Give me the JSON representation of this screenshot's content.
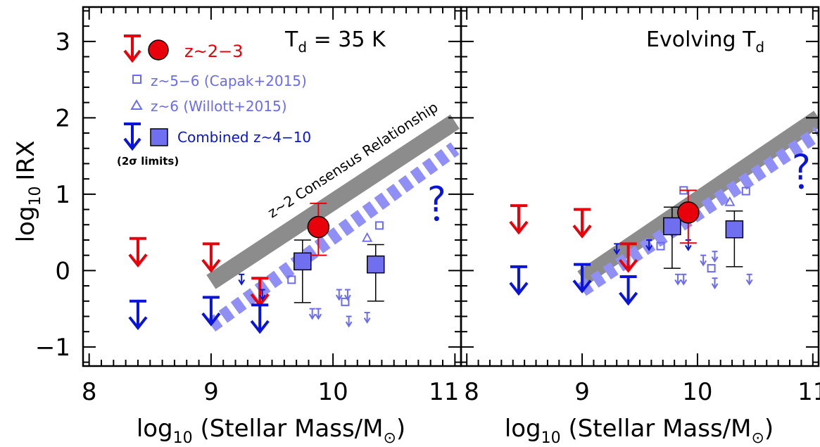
{
  "colors": {
    "z23": "#e8000b",
    "capak": "#6b6bf0",
    "combined": "#0a14d8",
    "combined_fill": "#6f6ff0",
    "consensus": "#8c8c8c",
    "dashed": "#8f8ff5",
    "axis": "#000000"
  },
  "y_axis": {
    "label_log": "log",
    "label_sub": "10",
    "label_rest": "IRX",
    "ticks": [
      -1,
      0,
      1,
      2,
      3
    ],
    "tick_labels": [
      "−1",
      "0",
      "1",
      "2",
      "3"
    ]
  },
  "panels": [
    {
      "title_main": "T",
      "title_sub": "d",
      "title_rest": " = 35 K",
      "x_label_log": "log",
      "x_label_sub": "10",
      "x_label_rest": " (Stellar Mass/M",
      "x_label_sun": "⊙",
      "x_label_close": ")",
      "x_tick_labels": [
        "8",
        "9",
        "10",
        "11"
      ]
    },
    {
      "title_main": "Evolving T",
      "title_sub": "d",
      "title_rest": "",
      "x_label_log": "log",
      "x_label_sub": "10",
      "x_label_rest": " (Stellar Mass/M",
      "x_label_sun": "⊙",
      "x_label_close": ")",
      "x_tick_labels": [
        "8",
        "9",
        "10",
        "11"
      ]
    }
  ],
  "legend": {
    "z23": "z~2−3",
    "capak": "z~5−6 (Capak+2015)",
    "willott": "z~6 (Willott+2015)",
    "combined": "Combined z~4−10",
    "limits_note": "(2σ limits)"
  },
  "consensus_label": "z~2 Consensus Relationship",
  "question_mark": "?",
  "chart_data": [
    {
      "type": "scatter",
      "title": "T_d = 35 K",
      "xlabel": "log10 (Stellar Mass/M⊙)",
      "ylabel": "log10 IRX",
      "xlim": [
        7.95,
        11.05
      ],
      "ylim": [
        -1.25,
        3.45
      ],
      "x_ticks": [
        8,
        9,
        10,
        11
      ],
      "y_ticks": [
        -1,
        0,
        1,
        2,
        3
      ],
      "relations": [
        {
          "name": "z~2 Consensus Relationship",
          "style": "solid",
          "x": [
            9.0,
            11.0
          ],
          "y": [
            -0.15,
            1.95
          ]
        },
        {
          "name": "",
          "style": "dashed",
          "x": [
            9.0,
            11.0
          ],
          "y": [
            -0.72,
            1.6
          ]
        }
      ],
      "z23_upper_limits": [
        {
          "x": 8.4,
          "y": 0.42
        },
        {
          "x": 9.0,
          "y": 0.35
        },
        {
          "x": 9.4,
          "y": -0.1
        }
      ],
      "z23_points": [
        {
          "x": 9.88,
          "y": 0.57,
          "err_low": 0.2,
          "err_high": 0.88
        }
      ],
      "combined_upper_limits": [
        {
          "x": 8.4,
          "y": -0.4
        },
        {
          "x": 9.0,
          "y": -0.35
        },
        {
          "x": 9.4,
          "y": -0.45
        }
      ],
      "combined_points": [
        {
          "x": 9.75,
          "y": 0.12,
          "err_low": -0.42,
          "err_high": 0.4
        },
        {
          "x": 10.35,
          "y": 0.08,
          "err_low": -0.4,
          "err_high": 0.34
        }
      ],
      "capak_points": [
        {
          "x": 9.66,
          "y": -0.12
        },
        {
          "x": 9.9,
          "y": 0.6
        },
        {
          "x": 10.1,
          "y": -0.41
        },
        {
          "x": 10.38,
          "y": 0.59
        }
      ],
      "capak_upper_limits": [
        {
          "x": 9.83,
          "y": -0.5
        },
        {
          "x": 9.88,
          "y": -0.5
        },
        {
          "x": 10.05,
          "y": -0.25
        },
        {
          "x": 10.12,
          "y": -0.25
        },
        {
          "x": 10.13,
          "y": -0.6
        },
        {
          "x": 10.28,
          "y": -0.55
        }
      ],
      "willott_points": [
        {
          "x": 10.28,
          "y": 0.43
        }
      ],
      "willott_upper_limits": [
        {
          "x": 9.25,
          "y": -0.05
        },
        {
          "x": 9.42,
          "y": -0.25
        }
      ],
      "question_points": [
        {
          "x": 10.85,
          "y": 0.68
        }
      ]
    },
    {
      "type": "scatter",
      "title": "Evolving T_d",
      "xlabel": "log10 (Stellar Mass/M⊙)",
      "ylabel": "log10 IRX",
      "xlim": [
        7.95,
        11.05
      ],
      "ylim": [
        -1.25,
        3.45
      ],
      "x_ticks": [
        8,
        9,
        10,
        11
      ],
      "y_ticks": [
        -1,
        0,
        1,
        2,
        3
      ],
      "relations": [
        {
          "name": "",
          "style": "solid",
          "x": [
            9.0,
            11.05
          ],
          "y": [
            -0.1,
            2.0
          ]
        },
        {
          "name": "",
          "style": "dashed",
          "x": [
            9.0,
            11.05
          ],
          "y": [
            -0.25,
            1.8
          ]
        }
      ],
      "z23_upper_limits": [
        {
          "x": 8.45,
          "y": 0.85
        },
        {
          "x": 9.0,
          "y": 0.8
        },
        {
          "x": 9.4,
          "y": 0.35
        }
      ],
      "z23_points": [
        {
          "x": 9.92,
          "y": 0.76,
          "err_low": 0.36,
          "err_high": 1.05
        }
      ],
      "combined_upper_limits": [
        {
          "x": 8.45,
          "y": 0.05
        },
        {
          "x": 9.0,
          "y": 0.08
        },
        {
          "x": 9.4,
          "y": -0.08
        }
      ],
      "combined_points": [
        {
          "x": 9.78,
          "y": 0.58,
          "err_low": 0.03,
          "err_high": 0.83
        },
        {
          "x": 10.32,
          "y": 0.54,
          "err_low": 0.05,
          "err_high": 0.78
        }
      ],
      "capak_points": [
        {
          "x": 9.68,
          "y": 0.32
        },
        {
          "x": 9.88,
          "y": 1.05
        },
        {
          "x": 10.12,
          "y": 0.03
        },
        {
          "x": 10.42,
          "y": 1.04
        }
      ],
      "capak_upper_limits": [
        {
          "x": 9.83,
          "y": -0.05
        },
        {
          "x": 9.88,
          "y": -0.05
        },
        {
          "x": 10.05,
          "y": 0.2
        },
        {
          "x": 10.15,
          "y": 0.25
        },
        {
          "x": 10.15,
          "y": -0.1
        },
        {
          "x": 10.45,
          "y": -0.05
        }
      ],
      "willott_points": [
        {
          "x": 10.28,
          "y": 0.9
        }
      ],
      "willott_upper_limits": [
        {
          "x": 9.3,
          "y": 0.35
        },
        {
          "x": 9.58,
          "y": 0.4
        },
        {
          "x": 9.92,
          "y": 0.4
        }
      ],
      "question_points": [
        {
          "x": 10.9,
          "y": 1.1
        }
      ]
    }
  ]
}
